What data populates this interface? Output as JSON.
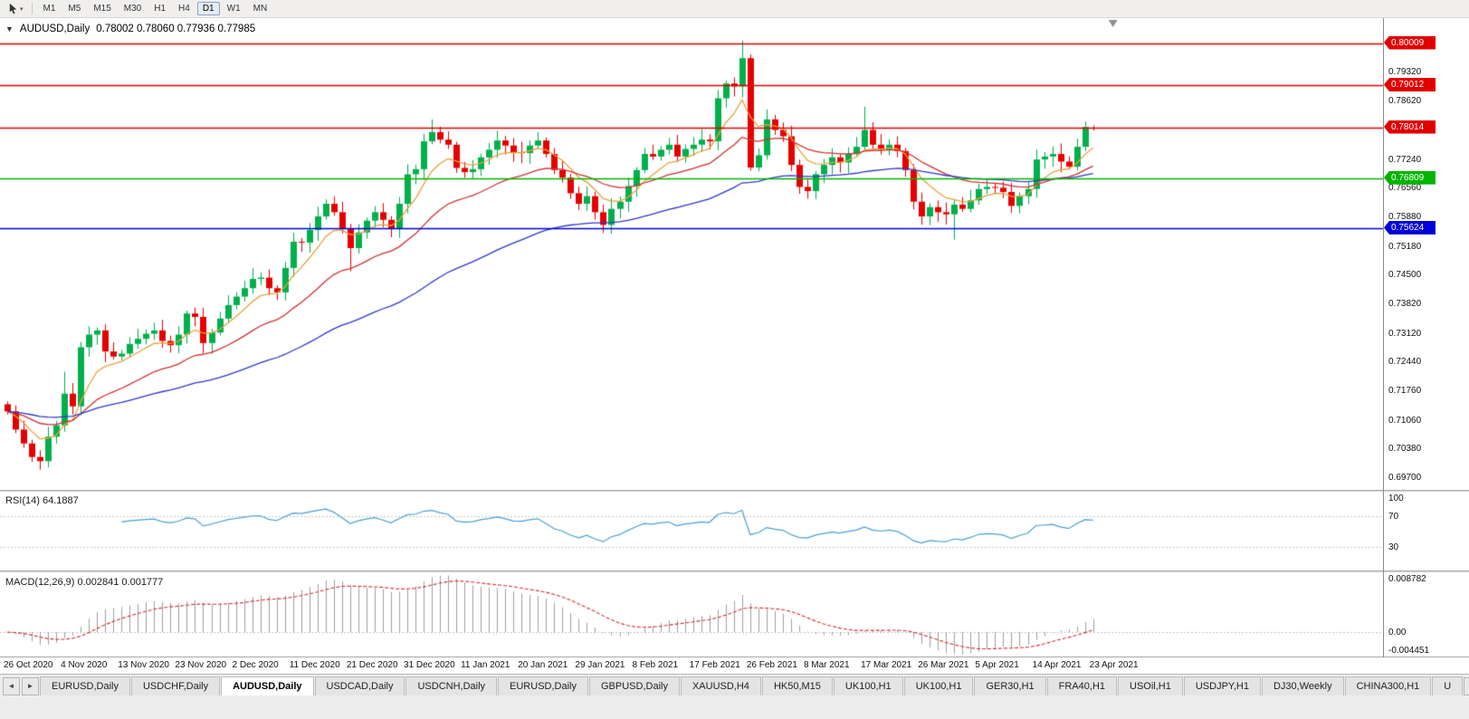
{
  "toolbar": {
    "timeframes": [
      "M1",
      "M5",
      "M15",
      "M30",
      "H1",
      "H4",
      "D1",
      "W1",
      "MN"
    ],
    "active_timeframe": "D1"
  },
  "chart": {
    "title": "AUDUSD,Daily",
    "ohlc": "0.78002 0.78060 0.77936 0.77985",
    "one_click_glyph": "▼"
  },
  "colors": {
    "up": "#00b04c",
    "down": "#e60000",
    "hline_red": "#e00000",
    "hline_green": "#00b400",
    "hline_blue": "#0000d8",
    "rsi_line": "#4a9fd8",
    "macd_hist": "#a0a0a0",
    "macd_signal": "#d23030",
    "level_dash": "#c4c4c4"
  },
  "chart_data": {
    "type": "candlestick",
    "symbol": "AUDUSD",
    "period": "Daily",
    "price_range": [
      0.6942,
      0.806
    ],
    "bars_per_label": 7,
    "x_labels": [
      "26 Oct 2020",
      "4 Nov 2020",
      "13 Nov 2020",
      "23 Nov 2020",
      "2 Dec 2020",
      "11 Dec 2020",
      "21 Dec 2020",
      "31 Dec 2020",
      "11 Jan 2021",
      "20 Jan 2021",
      "29 Jan 2021",
      "8 Feb 2021",
      "17 Feb 2021",
      "26 Feb 2021",
      "8 Mar 2021",
      "17 Mar 2021",
      "26 Mar 2021",
      "5 Apr 2021",
      "14 Apr 2021",
      "23 Apr 2021"
    ],
    "first_open": 0.7145,
    "closes": [
      0.7128,
      0.7085,
      0.7052,
      0.702,
      0.701,
      0.7068,
      0.7095,
      0.717,
      0.714,
      0.728,
      0.731,
      0.732,
      0.727,
      0.7258,
      0.7265,
      0.7288,
      0.73,
      0.7312,
      0.732,
      0.7295,
      0.7285,
      0.731,
      0.736,
      0.7352,
      0.729,
      0.7315,
      0.7348,
      0.738,
      0.74,
      0.742,
      0.7442,
      0.7445,
      0.742,
      0.741,
      0.7468,
      0.753,
      0.7528,
      0.7558,
      0.759,
      0.762,
      0.76,
      0.756,
      0.7515,
      0.7552,
      0.758,
      0.76,
      0.7582,
      0.756,
      0.762,
      0.769,
      0.7702,
      0.7768,
      0.779,
      0.7772,
      0.776,
      0.7705,
      0.7695,
      0.7702,
      0.773,
      0.7748,
      0.777,
      0.7758,
      0.7742,
      0.774,
      0.7758,
      0.777,
      0.7738,
      0.77,
      0.7682,
      0.7645,
      0.762,
      0.7638,
      0.76,
      0.757,
      0.7608,
      0.7625,
      0.7662,
      0.77,
      0.7738,
      0.7732,
      0.7748,
      0.776,
      0.7732,
      0.775,
      0.776,
      0.7772,
      0.7768,
      0.787,
      0.7905,
      0.7898,
      0.7965,
      0.7706,
      0.7735,
      0.782,
      0.7795,
      0.778,
      0.7712,
      0.766,
      0.765,
      0.769,
      0.7712,
      0.773,
      0.7718,
      0.7738,
      0.7755,
      0.7795,
      0.776,
      0.7748,
      0.776,
      0.7745,
      0.77,
      0.7625,
      0.759,
      0.7612,
      0.76,
      0.7595,
      0.7618,
      0.7608,
      0.7628,
      0.7655,
      0.766,
      0.7658,
      0.7648,
      0.7615,
      0.7638,
      0.7655,
      0.7725,
      0.7732,
      0.7738,
      0.772,
      0.7708,
      0.7755,
      0.7802,
      0.77985
    ],
    "wick_overrides": {
      "4": {
        "l": 0.699
      },
      "7": {
        "h": 0.7222,
        "l": 0.708
      },
      "42": {
        "l": 0.746
      },
      "52": {
        "h": 0.782
      },
      "90": {
        "h": 0.8007
      },
      "105": {
        "h": 0.785
      },
      "116": {
        "l": 0.7535
      },
      "132": {
        "h": 0.7815
      }
    },
    "last_bar": {
      "o": 0.78002,
      "h": 0.7806,
      "l": 0.77936,
      "c": 0.77985
    },
    "price_axis_labels": [
      {
        "value": 0.7932,
        "text": "0.79320"
      },
      {
        "value": 0.7862,
        "text": "0.78620"
      },
      {
        "value": 0.7724,
        "text": "0.77240"
      },
      {
        "value": 0.7656,
        "text": "0.76560"
      },
      {
        "value": 0.7588,
        "text": "0.75880"
      },
      {
        "value": 0.7518,
        "text": "0.75180"
      },
      {
        "value": 0.745,
        "text": "0.74500"
      },
      {
        "value": 0.7382,
        "text": "0.73820"
      },
      {
        "value": 0.7312,
        "text": "0.73120"
      },
      {
        "value": 0.7244,
        "text": "0.72440"
      },
      {
        "value": 0.7176,
        "text": "0.71760"
      },
      {
        "value": 0.7106,
        "text": "0.71060"
      },
      {
        "value": 0.7038,
        "text": "0.70380"
      },
      {
        "value": 0.697,
        "text": "0.69700"
      }
    ],
    "hlines": [
      {
        "value": 0.80009,
        "text": "0.80009",
        "color": "#e00000"
      },
      {
        "value": 0.79012,
        "text": "0.79012",
        "color": "#e00000"
      },
      {
        "value": 0.78014,
        "text": "0.78014",
        "color": "#e00000"
      },
      {
        "value": 0.76809,
        "text": "0.76809",
        "color": "#00b400"
      },
      {
        "value": 0.75624,
        "text": "0.75624",
        "color": "#0000d8"
      }
    ],
    "moving_averages": [
      {
        "period": 7,
        "color": "#e8a33d"
      },
      {
        "period": 21,
        "color": "#d23030"
      },
      {
        "period": 55,
        "color": "#3038c8"
      }
    ],
    "rsi": {
      "label": "RSI(14) 64.1887",
      "period": 14,
      "axis_labels": [
        {
          "value": 100,
          "text": "100"
        },
        {
          "value": 70,
          "text": "70"
        },
        {
          "value": 30,
          "text": "30"
        }
      ],
      "levels": [
        70,
        30
      ]
    },
    "macd": {
      "label": "MACD(12,26,9) 0.002841 0.001777",
      "fast": 12,
      "slow": 26,
      "signal": 9,
      "axis_top": "0.008782",
      "axis_zero": "0.00",
      "axis_bottom": "-0.004451"
    }
  },
  "tabs": {
    "left_arrows": [
      "◄",
      "►"
    ],
    "right_arrow": "►",
    "active_index": 2,
    "items": [
      "EURUSD,Daily",
      "USDCHF,Daily",
      "AUDUSD,Daily",
      "USDCAD,Daily",
      "USDCNH,Daily",
      "EURUSD,Daily",
      "GBPUSD,Daily",
      "XAUUSD,H4",
      "HK50,M15",
      "UK100,H1",
      "UK100,H1",
      "GER30,H1",
      "FRA40,H1",
      "USOil,H1",
      "USDJPY,H1",
      "DJ30,Weekly",
      "CHINA300,H1",
      "U"
    ]
  }
}
